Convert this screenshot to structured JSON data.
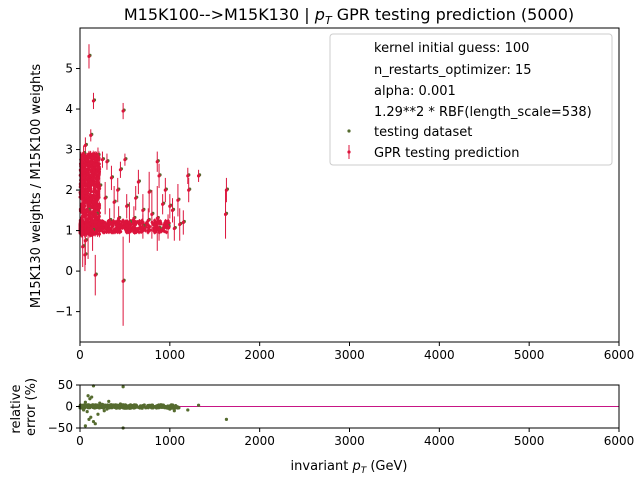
{
  "title": {
    "main": "M15K100-->M15K130 | ",
    "pt_symbol": "p",
    "pt_sub": "T",
    "rest": " GPR testing prediction (5000)"
  },
  "colors": {
    "prediction": "#dc143c",
    "testing": "#556b2f",
    "refline": "#c71585",
    "axes": "#000000"
  },
  "chart_data": [
    {
      "type": "scatter",
      "ylabel": "M15K130 weights / M15K100 weights",
      "xlim": [
        0,
        6000
      ],
      "ylim": [
        -1.75,
        6.0
      ],
      "xticks": [
        0,
        1000,
        2000,
        3000,
        4000,
        5000,
        6000
      ],
      "yticks": [
        -1,
        0,
        1,
        2,
        3,
        4,
        5
      ],
      "legend": {
        "placement": "top-right",
        "texts": [
          "kernel initial guess: 100",
          "n_restarts_optimizer: 15",
          "alpha: 0.001",
          "1.29**2 * RBF(length_scale=538)"
        ],
        "series_labels": [
          "testing dataset",
          "GPR testing prediction"
        ]
      },
      "points": [
        [
          100,
          5.3,
          0.3
        ],
        [
          150,
          4.2,
          0.2
        ],
        [
          120,
          3.35,
          0.15
        ],
        [
          480,
          3.95,
          0.2
        ],
        [
          60,
          3.1,
          0.2
        ],
        [
          40,
          2.9,
          0.2
        ],
        [
          200,
          2.85,
          0.2
        ],
        [
          250,
          2.75,
          0.2
        ],
        [
          300,
          2.7,
          0.2
        ],
        [
          500,
          2.75,
          0.15
        ],
        [
          860,
          2.7,
          0.25
        ],
        [
          880,
          2.35,
          0.3
        ],
        [
          1200,
          2.35,
          0.2
        ],
        [
          1320,
          2.35,
          0.15
        ],
        [
          1630,
          2.0,
          0.3
        ],
        [
          1620,
          1.4,
          0.6
        ],
        [
          1210,
          2.0,
          0.3
        ],
        [
          1090,
          1.75,
          0.4
        ],
        [
          1000,
          1.6,
          0.3
        ],
        [
          920,
          1.65,
          0.25
        ],
        [
          980,
          1.1,
          0.3
        ],
        [
          1050,
          1.05,
          0.3
        ],
        [
          1110,
          1.15,
          0.4
        ],
        [
          770,
          1.95,
          0.5
        ],
        [
          800,
          1.4,
          0.6
        ],
        [
          860,
          1.3,
          0.8
        ],
        [
          700,
          1.5,
          0.4
        ],
        [
          650,
          2.2,
          0.3
        ],
        [
          600,
          1.3,
          0.3
        ],
        [
          550,
          1.2,
          0.5
        ],
        [
          480,
          -0.25,
          1.1
        ],
        [
          170,
          -0.1,
          0.5
        ],
        [
          55,
          0.4,
          0.4
        ],
        [
          60,
          0.75,
          0.6
        ],
        [
          30,
          0.6,
          0.5
        ],
        [
          90,
          1.5,
          1.2
        ],
        [
          420,
          2.0,
          0.3
        ],
        [
          350,
          2.3,
          0.3
        ],
        [
          380,
          1.7,
          0.4
        ],
        [
          280,
          1.8,
          0.4
        ],
        [
          220,
          2.1,
          0.3
        ],
        [
          330,
          1.25,
          0.3
        ],
        [
          430,
          1.3,
          0.3
        ],
        [
          700,
          1.1,
          0.3
        ],
        [
          520,
          1.6,
          0.3
        ],
        [
          180,
          1.4,
          0.4
        ],
        [
          140,
          1.0,
          0.5
        ],
        [
          950,
          2.0,
          0.3
        ],
        [
          1150,
          1.2,
          0.3
        ],
        [
          450,
          2.5,
          0.2
        ],
        [
          620,
          1.8,
          0.3
        ],
        [
          760,
          1.25,
          0.3
        ],
        [
          880,
          1.05,
          0.3
        ],
        [
          1030,
          1.5,
          0.3
        ]
      ],
      "dense_band": {
        "x_min": 0,
        "x_max": 220,
        "y_min": 0.9,
        "y_max": 2.9
      },
      "dense_low_band": {
        "x_min": 0,
        "x_max": 1000,
        "y_min": 0.95,
        "y_max": 1.25
      }
    },
    {
      "type": "scatter",
      "xlabel_main": "invariant ",
      "xlabel_sym": "p",
      "xlabel_sub": "T",
      "xlabel_unit": " (GeV)",
      "ylabel_lines": [
        "relative",
        "error (%)"
      ],
      "xlim": [
        0,
        6000
      ],
      "ylim": [
        -50,
        50
      ],
      "xticks": [
        0,
        1000,
        2000,
        3000,
        4000,
        5000,
        6000
      ],
      "yticks": [
        -50,
        0,
        50
      ],
      "reference_line": 0,
      "points": [
        [
          150,
          48
        ],
        [
          480,
          46
        ],
        [
          90,
          25
        ],
        [
          110,
          18
        ],
        [
          130,
          22
        ],
        [
          60,
          10
        ],
        [
          40,
          -8
        ],
        [
          80,
          -12
        ],
        [
          100,
          -30
        ],
        [
          120,
          -25
        ],
        [
          150,
          -35
        ],
        [
          170,
          -40
        ],
        [
          480,
          -50
        ],
        [
          60,
          -45
        ],
        [
          200,
          -18
        ],
        [
          250,
          5
        ],
        [
          300,
          -6
        ],
        [
          350,
          4
        ],
        [
          400,
          -3
        ],
        [
          450,
          6
        ],
        [
          550,
          -4
        ],
        [
          600,
          3
        ],
        [
          650,
          -2
        ],
        [
          700,
          2
        ],
        [
          800,
          -3
        ],
        [
          900,
          4
        ],
        [
          1000,
          -6
        ],
        [
          1050,
          -10
        ],
        [
          1100,
          -3
        ],
        [
          1200,
          -8
        ],
        [
          1320,
          3
        ],
        [
          1630,
          -30
        ],
        [
          750,
          -1
        ],
        [
          850,
          1
        ],
        [
          950,
          0
        ],
        [
          220,
          8
        ],
        [
          270,
          -10
        ],
        [
          320,
          12
        ]
      ]
    }
  ],
  "xtick_labels": [
    "0",
    "1000",
    "2000",
    "3000",
    "4000",
    "5000",
    "6000"
  ],
  "ytick_labels_main": [
    "−1",
    "0",
    "1",
    "2",
    "3",
    "4",
    "5"
  ],
  "ytick_labels_ratio": [
    "−50",
    "0",
    "50"
  ]
}
